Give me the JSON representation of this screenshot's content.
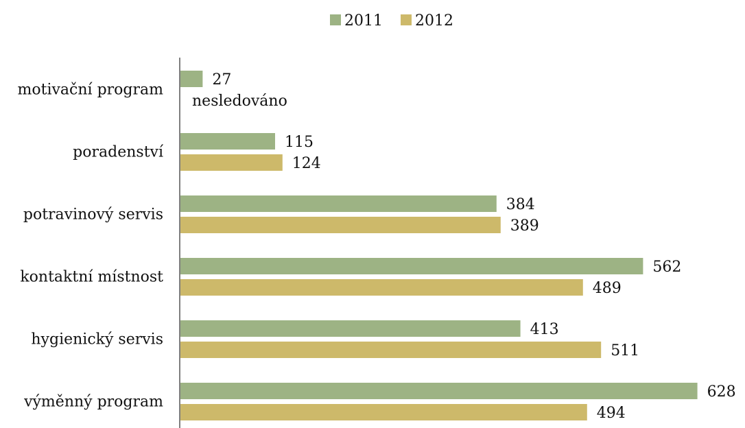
{
  "chart_data": {
    "type": "bar",
    "orientation": "horizontal",
    "title": "",
    "xlabel": "",
    "ylabel": "",
    "categories": [
      "motivační program",
      "poradenství",
      "potravinový servis",
      "kontaktní místnost",
      "hygienický servis",
      "výměnný program"
    ],
    "series": [
      {
        "name": "2011",
        "color": "#9db384",
        "values": [
          27,
          115,
          384,
          562,
          413,
          628
        ]
      },
      {
        "name": "2012",
        "color": "#cdb96a",
        "values": [
          null,
          124,
          389,
          489,
          511,
          494
        ]
      }
    ],
    "annotations": [
      {
        "category": "motivační program",
        "series": "2012",
        "text": "nesledováno"
      }
    ],
    "xlim": [
      0,
      640
    ],
    "grid": false,
    "legend_position": "top-center"
  }
}
